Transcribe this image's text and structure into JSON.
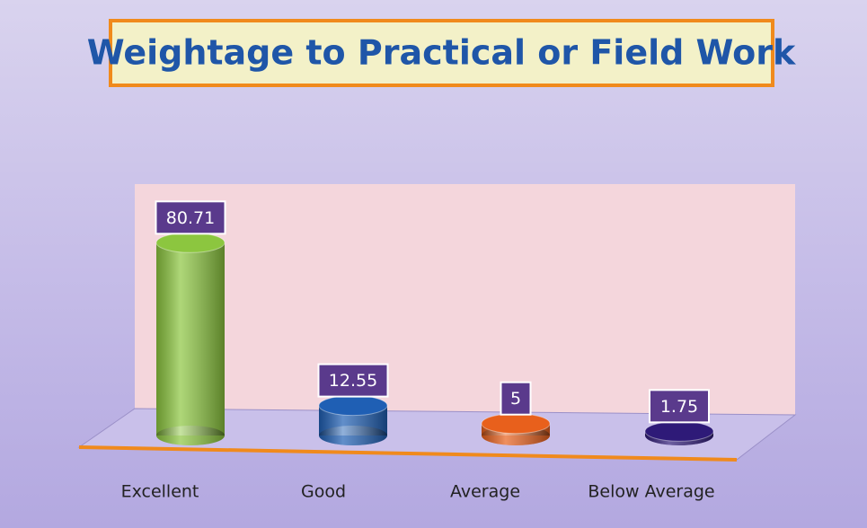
{
  "chart_data": {
    "type": "bar",
    "title": "Weightage to Practical or Field Work",
    "categories": [
      "Excellent",
      "Good",
      "Average",
      "Below Average"
    ],
    "values": [
      80.71,
      12.55,
      5,
      1.75
    ],
    "colors": [
      "#8cc63f",
      "#1f5fb4",
      "#e8601c",
      "#2e1a78"
    ],
    "ylim": [
      0,
      100
    ]
  }
}
